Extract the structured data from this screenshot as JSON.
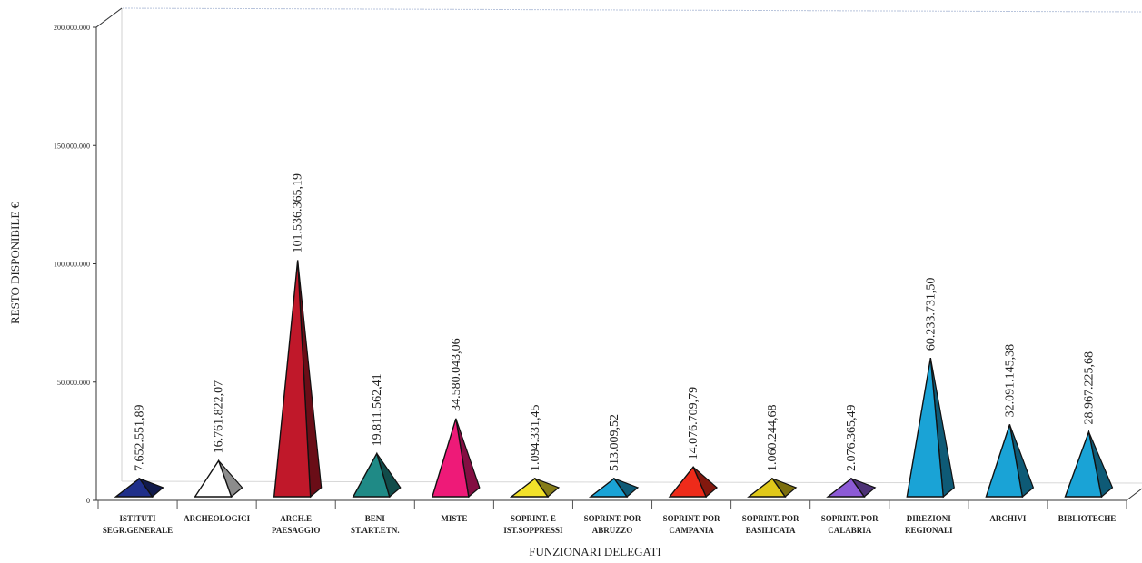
{
  "chart_data": {
    "type": "bar",
    "shape": "pyramid-3d",
    "xlabel": "FUNZIONARI DELEGATI",
    "ylabel": "RESTO DISPONIBILE €",
    "ylim": [
      0,
      200000000
    ],
    "yticks": [
      0,
      50000000,
      100000000,
      150000000,
      200000000
    ],
    "ytick_labels": [
      "0",
      "50.000.000",
      "100.000.000",
      "150.000.000",
      "200.000.000"
    ],
    "grid": false,
    "categories": [
      [
        "ISTITUTI",
        "SEGR.GENERALE"
      ],
      [
        "ARCHEOLOGICI"
      ],
      [
        "ARCH.E",
        "PAESAGGIO"
      ],
      [
        "BENI",
        "ST.ART.ETN."
      ],
      [
        "MISTE"
      ],
      [
        "SOPRINT. E",
        "IST.SOPPRESSI"
      ],
      [
        "SOPRINT. POR",
        "ABRUZZO"
      ],
      [
        "SOPRINT. POR",
        "CAMPANIA"
      ],
      [
        "SOPRINT. POR",
        "BASILICATA"
      ],
      [
        "SOPRINT. POR",
        "CALABRIA"
      ],
      [
        "DIREZIONI",
        "REGIONALI"
      ],
      [
        "ARCHIVI"
      ],
      [
        "BIBLIOTECHE"
      ]
    ],
    "values": [
      7652551.89,
      16761822.07,
      101536365.19,
      19811562.41,
      34580043.06,
      1094331.45,
      513009.52,
      14076709.79,
      1060244.68,
      2076365.49,
      60233731.5,
      32091145.38,
      28967225.68
    ],
    "value_labels": [
      "7.652.551,89",
      "16.761.822,07",
      "101.536.365,19",
      "19.811.562,41",
      "34.580.043,06",
      "1.094.331,45",
      "513.009,52",
      "14.076.709,79",
      "1.060.244,68",
      "2.076.365,49",
      "60.233.731,50",
      "32.091.145,38",
      "28.967.225,68"
    ],
    "colors": [
      "#1f2f8a",
      "#ffffff",
      "#c0182a",
      "#1f8a86",
      "#ee1a78",
      "#f2e12a",
      "#1aa3d6",
      "#ee2b1a",
      "#e0c81a",
      "#8c5ad6",
      "#1aa3d6",
      "#1aa3d6",
      "#1aa3d6"
    ]
  }
}
